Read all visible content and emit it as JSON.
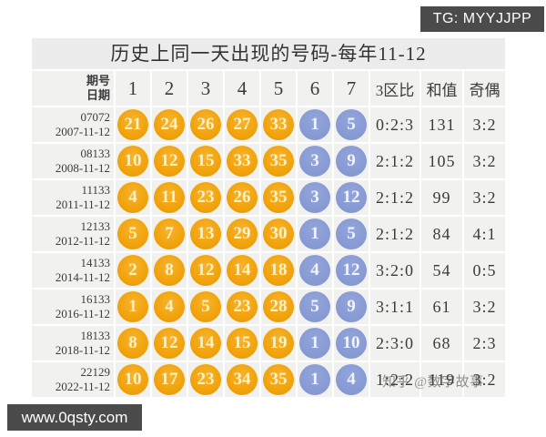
{
  "tg_badge": {
    "label": "TG: MYYJJPP"
  },
  "site_badge": {
    "label": "www.0qsty.com"
  },
  "title": "历史上同一天出现的号码-每年11-12",
  "watermark": {
    "label": "知乎 @数字故事"
  },
  "colors": {
    "front_ball": "#f0a007",
    "back_ball": "#8598d2",
    "badge_bg": "#4b4b4b",
    "cell_bg": "#f1f1f0",
    "title_bg": "#ececec"
  },
  "table": {
    "header": {
      "issue_label": "期号",
      "date_label": "日期",
      "positions": [
        "1",
        "2",
        "3",
        "4",
        "5",
        "6",
        "7"
      ],
      "zone_label": "3区比",
      "sum_label": "和值",
      "parity_label": "奇偶"
    },
    "rows": [
      {
        "issue": "07072",
        "date": "2007-11-12",
        "front": [
          "21",
          "24",
          "26",
          "27",
          "33"
        ],
        "back": [
          "1",
          "5"
        ],
        "zone": "0:2:3",
        "sum": "131",
        "parity": "3:2"
      },
      {
        "issue": "08133",
        "date": "2008-11-12",
        "front": [
          "10",
          "12",
          "15",
          "33",
          "35"
        ],
        "back": [
          "3",
          "9"
        ],
        "zone": "2:1:2",
        "sum": "105",
        "parity": "3:2"
      },
      {
        "issue": "11133",
        "date": "2011-11-12",
        "front": [
          "4",
          "11",
          "23",
          "26",
          "35"
        ],
        "back": [
          "3",
          "12"
        ],
        "zone": "2:1:2",
        "sum": "99",
        "parity": "3:2"
      },
      {
        "issue": "12133",
        "date": "2012-11-12",
        "front": [
          "5",
          "7",
          "13",
          "29",
          "30"
        ],
        "back": [
          "1",
          "5"
        ],
        "zone": "2:1:2",
        "sum": "84",
        "parity": "4:1"
      },
      {
        "issue": "14133",
        "date": "2014-11-12",
        "front": [
          "2",
          "8",
          "12",
          "14",
          "18"
        ],
        "back": [
          "4",
          "12"
        ],
        "zone": "3:2:0",
        "sum": "54",
        "parity": "0:5"
      },
      {
        "issue": "16133",
        "date": "2016-11-12",
        "front": [
          "1",
          "4",
          "5",
          "23",
          "28"
        ],
        "back": [
          "5",
          "9"
        ],
        "zone": "3:1:1",
        "sum": "61",
        "parity": "3:2"
      },
      {
        "issue": "18133",
        "date": "2018-11-12",
        "front": [
          "8",
          "12",
          "14",
          "15",
          "19"
        ],
        "back": [
          "1",
          "10"
        ],
        "zone": "2:3:0",
        "sum": "68",
        "parity": "2:3"
      },
      {
        "issue": "22129",
        "date": "2022-11-12",
        "front": [
          "10",
          "17",
          "23",
          "34",
          "35"
        ],
        "back": [
          "1",
          "4"
        ],
        "zone": "1:2:2",
        "sum": "119",
        "parity": "3:2"
      }
    ]
  }
}
